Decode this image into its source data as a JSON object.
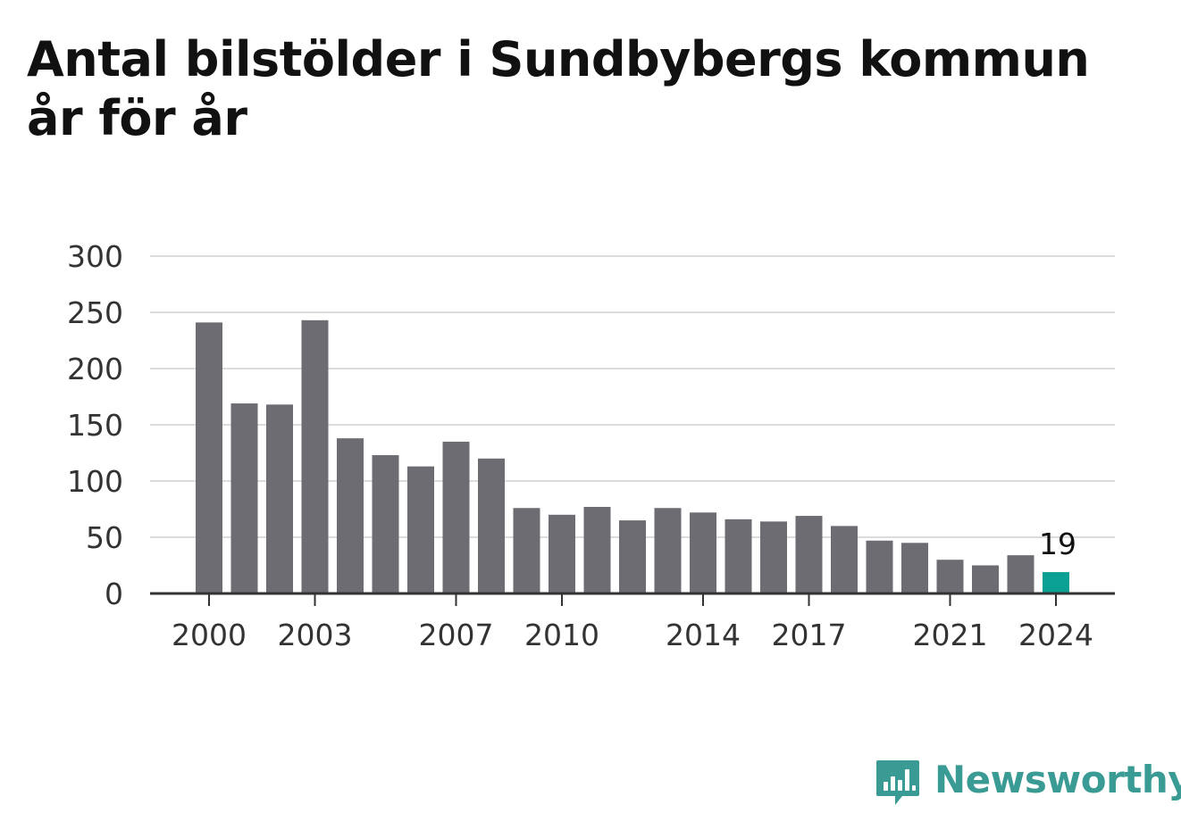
{
  "title": "Antal bilstölder i Sundbybergs kommun år för år",
  "brand": {
    "name": "Newsworthy",
    "icon": "bar-chart-speech-bubble-icon",
    "color": "#3a9b94"
  },
  "chart_data": {
    "type": "bar",
    "title": "Antal bilstölder i Sundbybergs kommun år för år",
    "xlabel": "",
    "ylabel": "",
    "categories": [
      "2000",
      "2001",
      "2002",
      "2003",
      "2004",
      "2005",
      "2006",
      "2007",
      "2008",
      "2009",
      "2010",
      "2011",
      "2012",
      "2013",
      "2014",
      "2015",
      "2016",
      "2017",
      "2018",
      "2019",
      "2020",
      "2021",
      "2022",
      "2023",
      "2024"
    ],
    "values": [
      241,
      169,
      168,
      243,
      138,
      123,
      113,
      135,
      120,
      76,
      70,
      77,
      65,
      76,
      72,
      66,
      64,
      69,
      60,
      47,
      45,
      30,
      25,
      34,
      19
    ],
    "x_tick_labels": [
      "2000",
      "2003",
      "2007",
      "2010",
      "2014",
      "2017",
      "2021",
      "2024"
    ],
    "y_ticks": [
      0,
      50,
      100,
      150,
      200,
      250,
      300
    ],
    "ylim": [
      0,
      300
    ],
    "grid": true,
    "bar_color": "#6d6c72",
    "highlight_color": "#0aa094",
    "highlight_category": "2024",
    "data_labels": [
      {
        "category": "2024",
        "text": "19"
      }
    ]
  }
}
